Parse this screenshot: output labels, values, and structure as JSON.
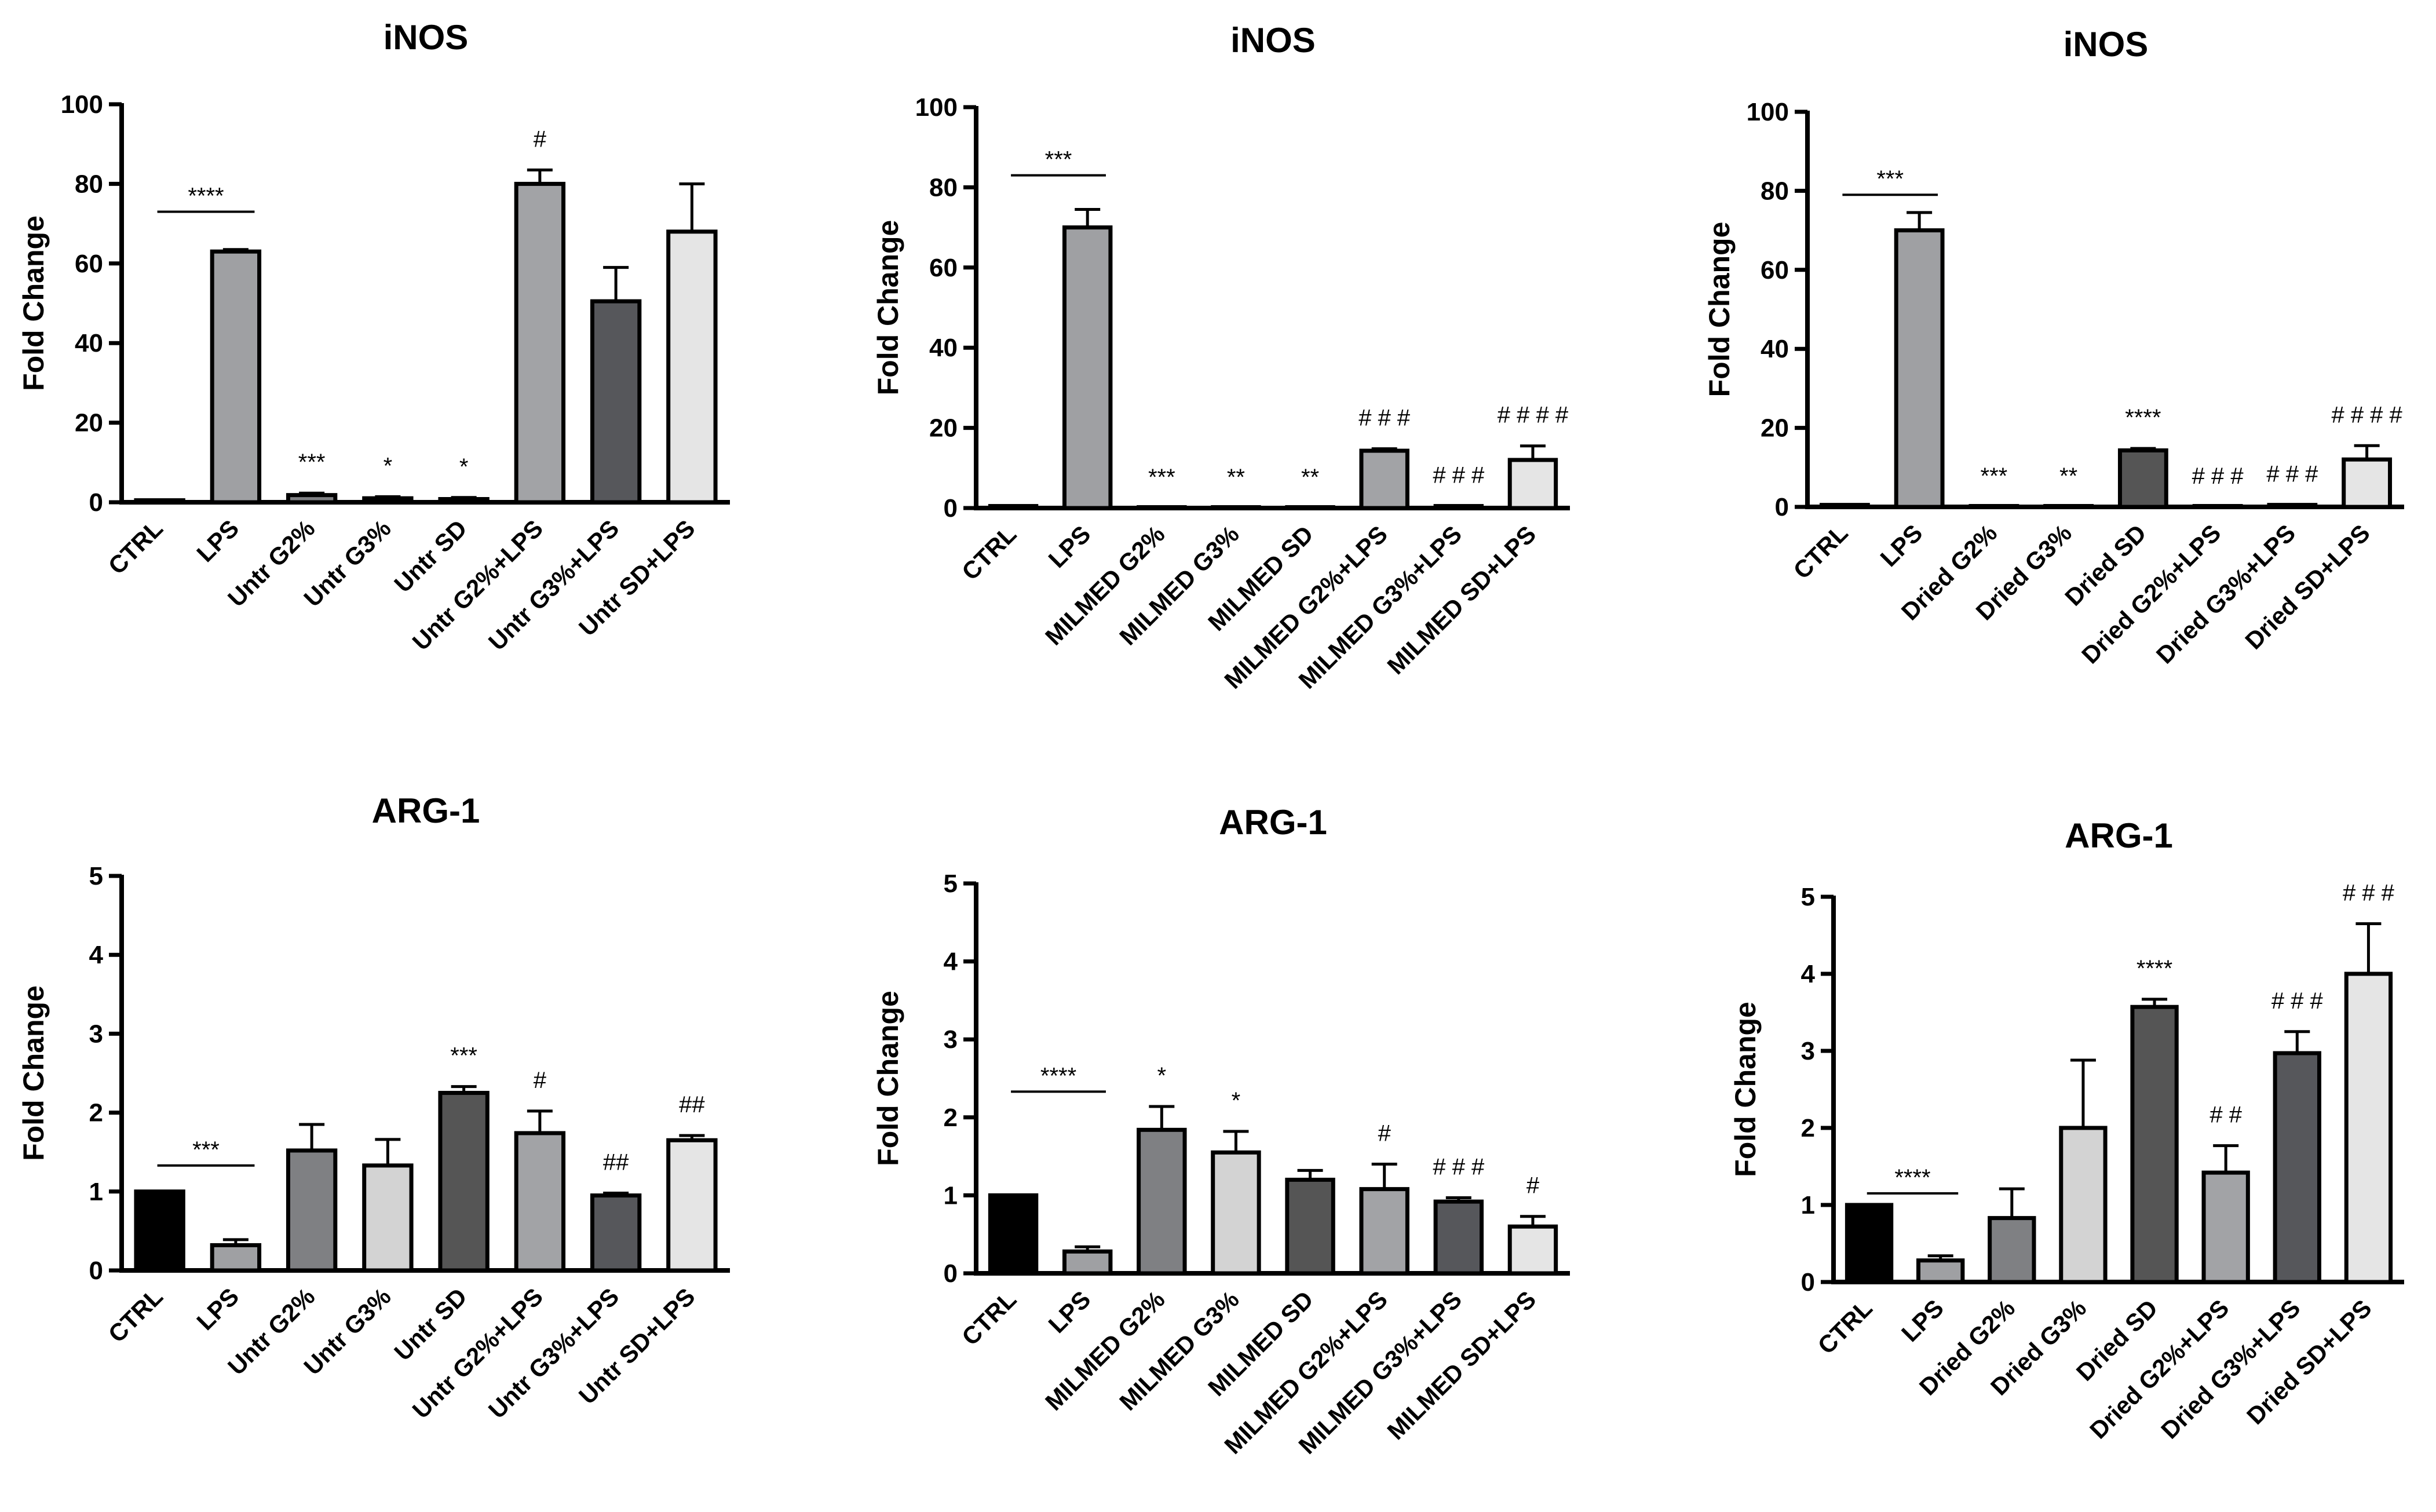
{
  "figure": {
    "bg": "#ffffff"
  },
  "chart_data": [
    {
      "type": "bar",
      "title": "iNOS",
      "ylabel": "Fold Change",
      "xlabel": "",
      "ylim": [
        0,
        100
      ],
      "yticks": [
        0,
        20,
        40,
        60,
        80,
        100
      ],
      "grid": false,
      "categories": [
        "CTRL",
        "LPS",
        "Untr G2%",
        "Untr G3%",
        "Untr SD",
        "Untr G2%+LPS",
        "Untr G3%+LPS",
        "Untr SD+LPS"
      ],
      "values": [
        0.5,
        63,
        1.8,
        1.0,
        0.8,
        80,
        50.5,
        68
      ],
      "errors": [
        0,
        0.5,
        0.5,
        0.4,
        0.4,
        3.5,
        8.5,
        12
      ],
      "fills": [
        "#000000",
        "#9fa0a3",
        "#7f8083",
        "#d3d3d3",
        "#555555",
        "#a2a3a6",
        "#56575b",
        "#e5e5e5"
      ],
      "annotations": [
        "",
        "",
        "***",
        "*",
        "*",
        "#",
        "",
        ""
      ],
      "bracket": {
        "from": 0,
        "to": 1,
        "label": "****",
        "value": 73
      }
    },
    {
      "type": "bar",
      "title": "iNOS",
      "ylabel": "Fold Change",
      "xlabel": "",
      "ylim": [
        0,
        100
      ],
      "yticks": [
        0,
        20,
        40,
        60,
        80,
        100
      ],
      "grid": false,
      "categories": [
        "CTRL",
        "LPS",
        "MILMED G2%",
        "MILMED G3%",
        "MILMED SD",
        "MILMED G2%+LPS",
        "MILMED G3%+LPS",
        "MILMED SD+LPS"
      ],
      "values": [
        0.5,
        70,
        0,
        0,
        0,
        14.3,
        0.5,
        12
      ],
      "errors": [
        0,
        4.5,
        0,
        0,
        0,
        0.5,
        0,
        3.5
      ],
      "fills": [
        "#000000",
        "#9fa0a3",
        "#7f8083",
        "#d3d3d3",
        "#555555",
        "#a2a3a6",
        "#56575b",
        "#e5e5e5"
      ],
      "annotations": [
        "",
        "",
        "***",
        "**",
        "**",
        "# # #",
        "# # #",
        "# # # #"
      ],
      "bracket": {
        "from": 0,
        "to": 1,
        "label": "***",
        "value": 83
      }
    },
    {
      "type": "bar",
      "title": "iNOS",
      "ylabel": "Fold Change",
      "xlabel": "",
      "ylim": [
        0,
        100
      ],
      "yticks": [
        0,
        20,
        40,
        60,
        80,
        100
      ],
      "grid": false,
      "categories": [
        "CTRL",
        "LPS",
        "Dried G2%",
        "Dried G3%",
        "Dried SD",
        "Dried G2%+LPS",
        "Dried G3%+LPS",
        "Dried SD+LPS"
      ],
      "values": [
        0.5,
        70,
        0,
        0,
        14.3,
        0,
        0.5,
        12
      ],
      "errors": [
        0,
        4.5,
        0,
        0,
        0.5,
        0,
        0,
        3.5
      ],
      "fills": [
        "#000000",
        "#9fa0a3",
        "#7f8083",
        "#d3d3d3",
        "#555555",
        "#a2a3a6",
        "#56575b",
        "#e5e5e5"
      ],
      "annotations": [
        "",
        "",
        "***",
        "**",
        "****",
        "# # #",
        "# # #",
        "# # # #"
      ],
      "bracket": {
        "from": 0,
        "to": 1,
        "label": "***",
        "value": 79
      }
    },
    {
      "type": "bar",
      "title": "ARG-1",
      "ylabel": "Fold Change",
      "xlabel": "",
      "ylim": [
        0,
        5
      ],
      "yticks": [
        0,
        1,
        2,
        3,
        4,
        5
      ],
      "grid": false,
      "categories": [
        "CTRL",
        "LPS",
        "Untr G2%",
        "Untr G3%",
        "Untr SD",
        "Untr G2%+LPS",
        "Untr G3%+LPS",
        "Untr SD+LPS"
      ],
      "values": [
        1.0,
        0.32,
        1.52,
        1.33,
        2.25,
        1.74,
        0.95,
        1.65
      ],
      "errors": [
        0,
        0.07,
        0.33,
        0.33,
        0.08,
        0.28,
        0.03,
        0.06
      ],
      "fills": [
        "#000000",
        "#9fa0a3",
        "#7f8083",
        "#d3d3d3",
        "#555555",
        "#a2a3a6",
        "#56575b",
        "#e5e5e5"
      ],
      "annotations": [
        "",
        "",
        "",
        "",
        "***",
        "#",
        "##",
        "##"
      ],
      "bracket": {
        "from": 0,
        "to": 1,
        "label": "***",
        "value": 1.33
      }
    },
    {
      "type": "bar",
      "title": "ARG-1",
      "ylabel": "Fold Change",
      "xlabel": "",
      "ylim": [
        0,
        5
      ],
      "yticks": [
        0,
        1,
        2,
        3,
        4,
        5
      ],
      "grid": false,
      "categories": [
        "CTRL",
        "LPS",
        "MILMED G2%",
        "MILMED G3%",
        "MILMED SD",
        "MILMED G2%+LPS",
        "MILMED G3%+LPS",
        "MILMED SD+LPS"
      ],
      "values": [
        1.0,
        0.28,
        1.84,
        1.55,
        1.2,
        1.08,
        0.92,
        0.6
      ],
      "errors": [
        0,
        0.06,
        0.3,
        0.27,
        0.12,
        0.32,
        0.05,
        0.13
      ],
      "fills": [
        "#000000",
        "#9fa0a3",
        "#7f8083",
        "#d3d3d3",
        "#555555",
        "#a2a3a6",
        "#56575b",
        "#e5e5e5"
      ],
      "annotations": [
        "",
        "",
        "*",
        "*",
        "",
        "#",
        "# # #",
        "#"
      ],
      "bracket": {
        "from": 0,
        "to": 1,
        "label": "****",
        "value": 2.33
      }
    },
    {
      "type": "bar",
      "title": "ARG-1",
      "ylabel": "Fold Change",
      "xlabel": "",
      "ylim": [
        0,
        5
      ],
      "yticks": [
        0,
        1,
        2,
        3,
        4,
        5
      ],
      "grid": false,
      "categories": [
        "CTRL",
        "LPS",
        "Dried G2%",
        "Dried G3%",
        "Dried SD",
        "Dried G2%+LPS",
        "Dried G3%+LPS",
        "Dried SD+LPS"
      ],
      "values": [
        1.0,
        0.28,
        0.83,
        2.0,
        3.57,
        1.42,
        2.97,
        4.0
      ],
      "errors": [
        0,
        0.06,
        0.38,
        0.88,
        0.1,
        0.35,
        0.28,
        0.65
      ],
      "fills": [
        "#000000",
        "#9fa0a3",
        "#7f8083",
        "#d3d3d3",
        "#555555",
        "#a2a3a6",
        "#56575b",
        "#e5e5e5"
      ],
      "annotations": [
        "",
        "",
        "",
        "",
        "****",
        "# #",
        "# # #",
        "#  # #"
      ],
      "bracket": {
        "from": 0,
        "to": 1,
        "label": "****",
        "value": 1.15
      }
    }
  ]
}
